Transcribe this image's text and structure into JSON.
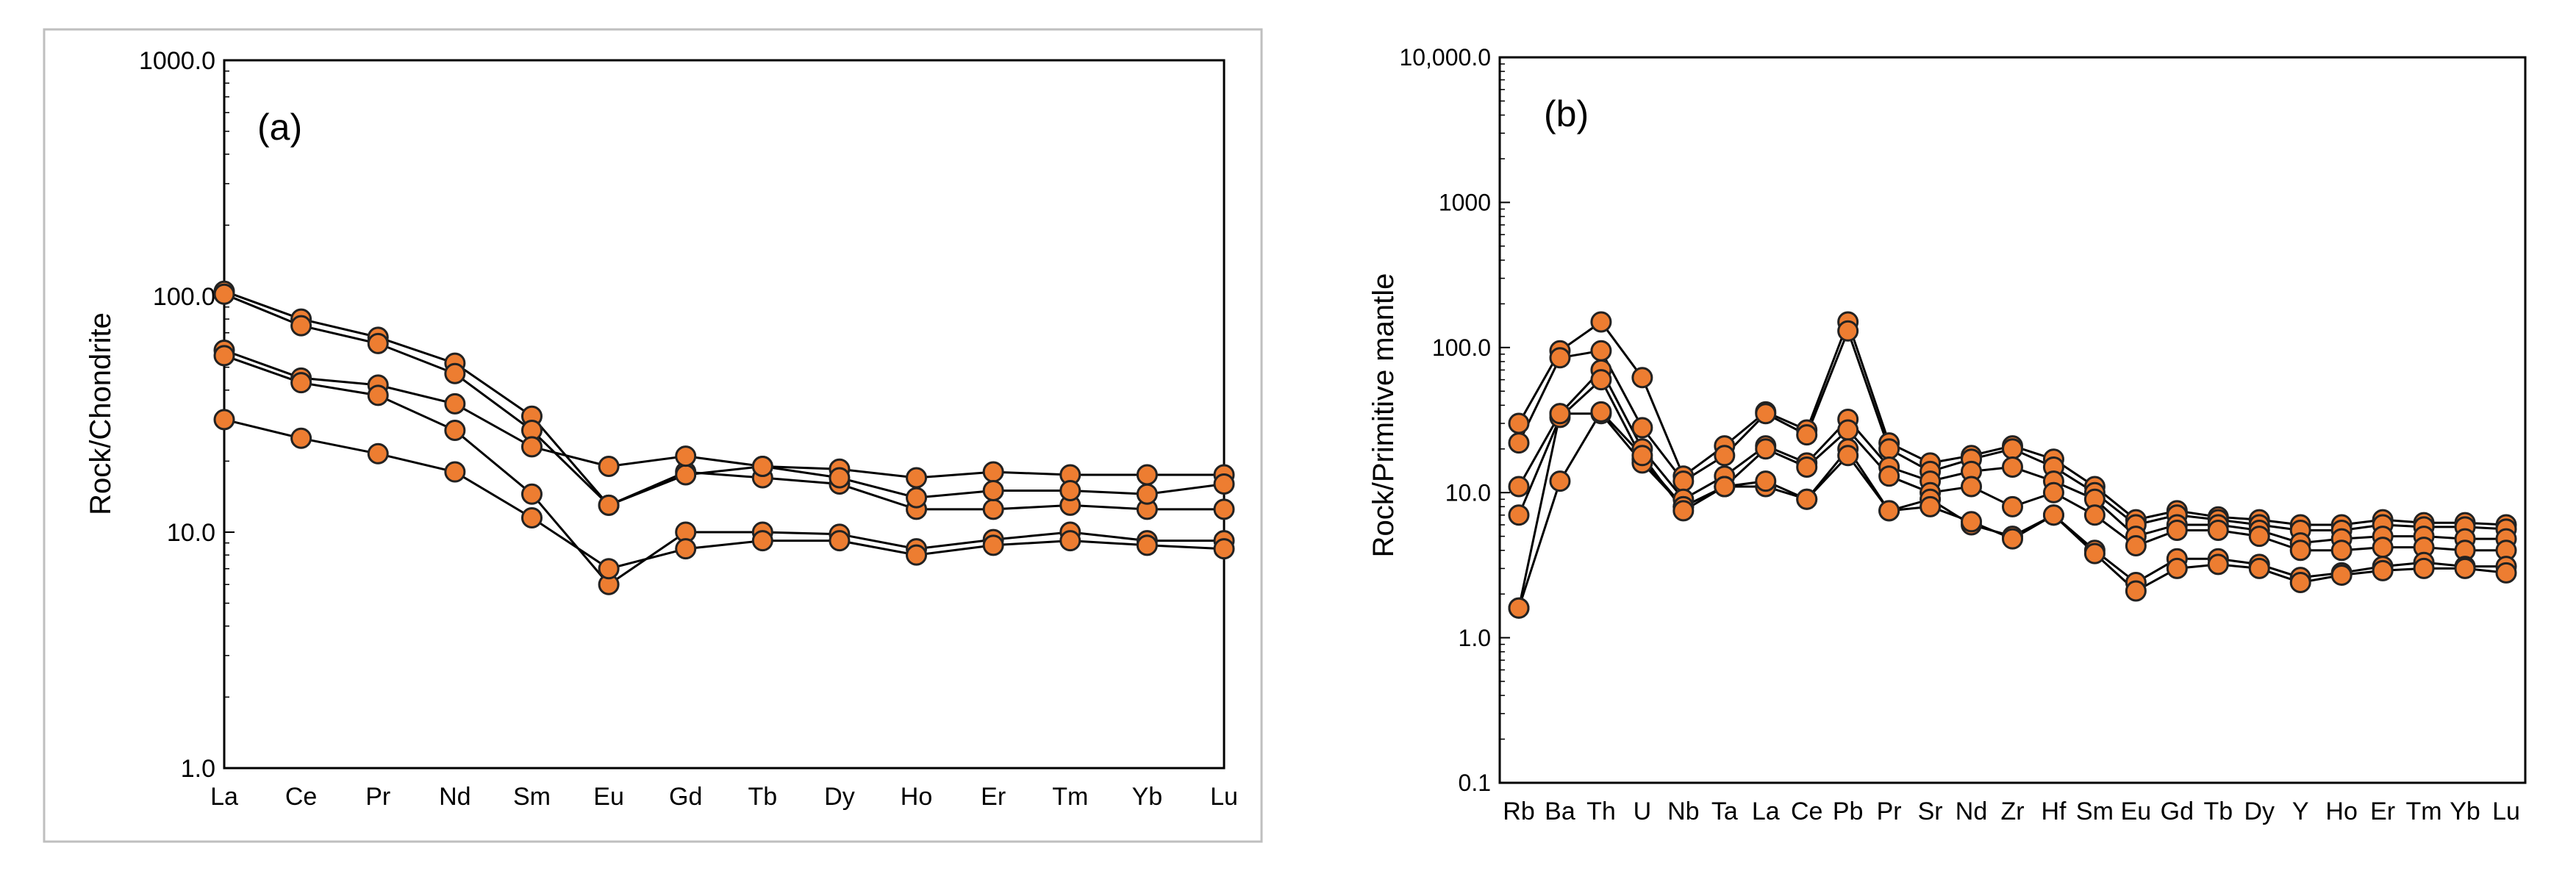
{
  "colors": {
    "marker_fill": "#ed7d31",
    "marker_stroke": "#222222",
    "line": "#000000",
    "frame": "#bfbfbf"
  },
  "chart_data": [
    {
      "type": "line",
      "scale": "log",
      "label": "(a)",
      "ylabel": "Rock/Chondrite",
      "ylim": [
        1,
        1000
      ],
      "yticks": [
        "1.0",
        "10.0",
        "100.0",
        "1000.0"
      ],
      "categories": [
        "La",
        "Ce",
        "Pr",
        "Nd",
        "Sm",
        "Eu",
        "Gd",
        "Tb",
        "Dy",
        "Ho",
        "Er",
        "Tm",
        "Yb",
        "Lu"
      ],
      "series": [
        {
          "name": "s1",
          "values": [
            105,
            80,
            67,
            52,
            31,
            13,
            18,
            17,
            16,
            12.5,
            12.5,
            13,
            12.5,
            12.5
          ]
        },
        {
          "name": "s2",
          "values": [
            102,
            75,
            63,
            47,
            27,
            13,
            17.5,
            19,
            18.5,
            17,
            18,
            17.5,
            17.5,
            17.5
          ]
        },
        {
          "name": "s3",
          "values": [
            59,
            45,
            42,
            35,
            23,
            19,
            21,
            19,
            17,
            14,
            15,
            15,
            14.5,
            16
          ]
        },
        {
          "name": "s4",
          "values": [
            56,
            43,
            38,
            27,
            14.5,
            6,
            10,
            10,
            9.8,
            8.5,
            9.3,
            10,
            9.2,
            9.2
          ]
        },
        {
          "name": "s5",
          "values": [
            30,
            25,
            21.5,
            18,
            11.5,
            7,
            8.5,
            9.2,
            9.2,
            8,
            8.8,
            9.2,
            8.8,
            8.5
          ]
        }
      ]
    },
    {
      "type": "line",
      "scale": "log",
      "label": "(b)",
      "ylabel": "Rock/Primitive mantle",
      "ylim": [
        0.1,
        10000
      ],
      "yticks": [
        "0.1",
        "1.0",
        "10.0",
        "100.0",
        "1000",
        "10,000.0"
      ],
      "categories": [
        "Rb",
        "Ba",
        "Th",
        "U",
        "Nb",
        "Ta",
        "La",
        "Ce",
        "Pb",
        "Pr",
        "Sr",
        "Nd",
        "Zr",
        "Hf",
        "Sm",
        "Eu",
        "Gd",
        "Tb",
        "Dy",
        "Y",
        "Ho",
        "Er",
        "Tm",
        "Yb",
        "Lu"
      ],
      "series": [
        {
          "name": "s1",
          "values": [
            30,
            95,
            150,
            62,
            13,
            21,
            36,
            27,
            150,
            22,
            16,
            18,
            21,
            17,
            11,
            6.5,
            7.5,
            6.8,
            6.5,
            6,
            6,
            6.5,
            6.2,
            6.2,
            6
          ]
        },
        {
          "name": "s2",
          "values": [
            22,
            85,
            95,
            28,
            12,
            18,
            35,
            25,
            130,
            20,
            14,
            17,
            20,
            15,
            10,
            6,
            7,
            6.5,
            6,
            5.5,
            5.5,
            6,
            5.8,
            5.8,
            5.6
          ]
        },
        {
          "name": "s3",
          "values": [
            11,
            35,
            70,
            20,
            9,
            13,
            21,
            16,
            32,
            15,
            12,
            14,
            15,
            12,
            9,
            5,
            6,
            6,
            5.5,
            4.5,
            4.8,
            5,
            5,
            4.8,
            4.8
          ]
        },
        {
          "name": "s4",
          "values": [
            7,
            33,
            60,
            17,
            8,
            11,
            20,
            15,
            27,
            13,
            10,
            11,
            8,
            10,
            7,
            4.3,
            5.5,
            5.5,
            5,
            4,
            4,
            4.2,
            4.2,
            4,
            4
          ]
        },
        {
          "name": "s5",
          "values": [
            1.6,
            35,
            35,
            16,
            8,
            11,
            11,
            9,
            20,
            7.5,
            9,
            6,
            5,
            7,
            4,
            2.4,
            3.5,
            3.5,
            3.2,
            2.6,
            2.8,
            3.1,
            3.3,
            3.1,
            3.1
          ]
        },
        {
          "name": "s6",
          "values": [
            1.6,
            12,
            36,
            18,
            7.5,
            11,
            12,
            9,
            18,
            7.5,
            8,
            6.3,
            4.8,
            7,
            3.8,
            2.1,
            3,
            3.2,
            3,
            2.4,
            2.7,
            2.9,
            3,
            3,
            2.8
          ]
        }
      ]
    }
  ]
}
